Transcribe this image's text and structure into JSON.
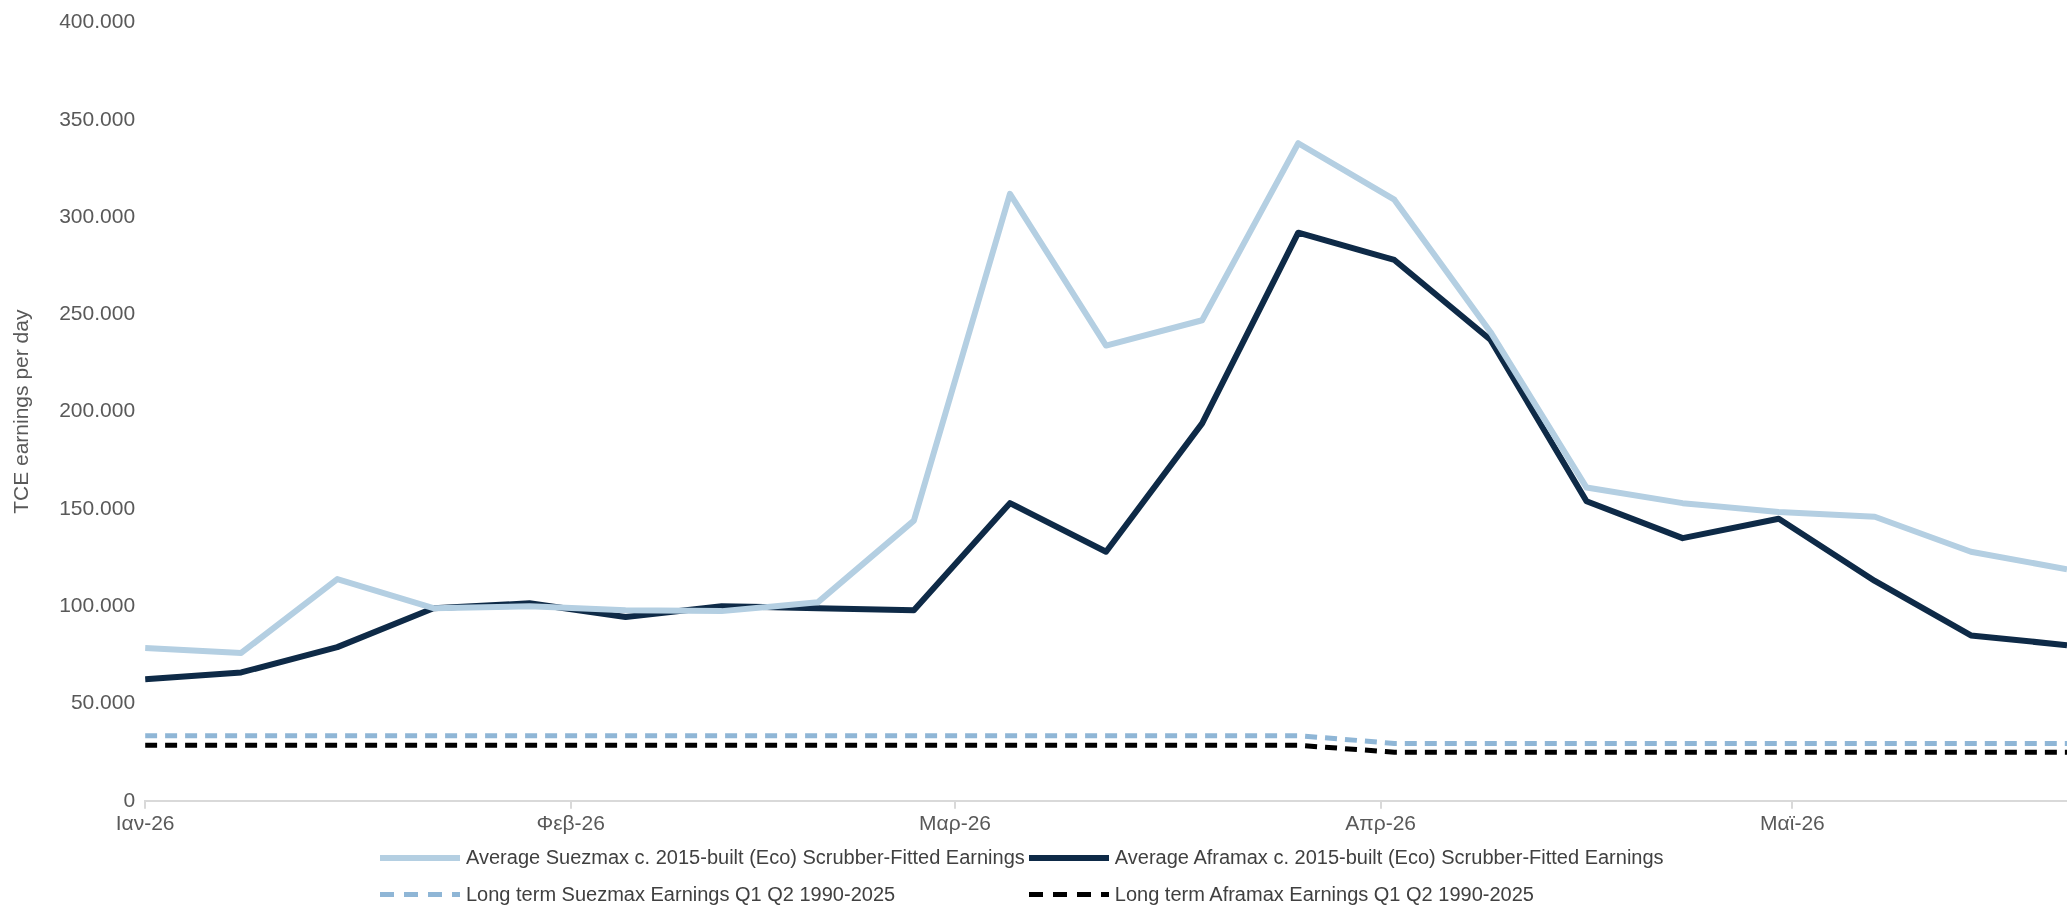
{
  "chart_data": {
    "type": "line",
    "ylabel": "TCE earnings per day",
    "x": [
      "2026-01-01",
      "2026-01-08",
      "2026-01-15",
      "2026-01-22",
      "2026-01-29",
      "2026-02-05",
      "2026-02-12",
      "2026-02-19",
      "2026-02-26",
      "2026-03-05",
      "2026-03-12",
      "2026-03-19",
      "2026-03-26",
      "2026-04-02",
      "2026-04-09",
      "2026-04-16",
      "2026-04-23",
      "2026-04-30",
      "2026-05-07",
      "2026-05-14",
      "2026-05-21"
    ],
    "series": [
      {
        "name": "Average Suezmax c. 2015-built (Eco) Scrubber-Fitted Earnings",
        "color": "#b4cfe2",
        "line_style": "solid",
        "values": [
          78500,
          76000,
          114000,
          99000,
          100000,
          98000,
          97500,
          102000,
          144000,
          312000,
          234000,
          247000,
          338000,
          309000,
          241000,
          161000,
          153000,
          148500,
          146000,
          128000,
          119000
        ]
      },
      {
        "name": "Average Aframax c. 2015-built (Eco) Scrubber-Fitted Earnings",
        "color": "#0e2a47",
        "line_style": "solid",
        "values": [
          62500,
          66000,
          79000,
          99000,
          101500,
          94500,
          100000,
          99000,
          98000,
          153000,
          128000,
          194000,
          292000,
          278000,
          237000,
          154000,
          135000,
          145000,
          113000,
          85000,
          80000
        ]
      },
      {
        "name": "Long term Suezmax Earnings Q1 Q2 1990-2025",
        "color": "#8fb6d6",
        "line_style": "dashed",
        "values": [
          33500,
          33500,
          33500,
          33500,
          33500,
          33500,
          33500,
          33500,
          33500,
          33500,
          33500,
          33500,
          33500,
          29500,
          29500,
          29500,
          29500,
          29500,
          29500,
          29500,
          29500
        ]
      },
      {
        "name": "Long term Aframax Earnings Q1 Q2 1990-2025",
        "color": "#000000",
        "line_style": "dashed",
        "values": [
          28500,
          28500,
          28500,
          28500,
          28500,
          28500,
          28500,
          28500,
          28500,
          28500,
          28500,
          28500,
          28500,
          25000,
          25000,
          25000,
          25000,
          25000,
          25000,
          25000,
          25000
        ]
      }
    ],
    "xlim": [
      "2026-01-01",
      "2026-05-21"
    ],
    "xticks": [
      {
        "value": "2026-01-01",
        "label": "Ιαν-26"
      },
      {
        "value": "2026-02-01",
        "label": "Φεβ-26"
      },
      {
        "value": "2026-03-01",
        "label": "Μαρ-26"
      },
      {
        "value": "2026-04-01",
        "label": "Απρ-26"
      },
      {
        "value": "2026-05-01",
        "label": "Μαϊ-26"
      }
    ],
    "ylim": [
      0,
      400000
    ],
    "yticks": [
      0,
      {
        "value": 50000,
        "label": "50.000"
      },
      {
        "value": 100000,
        "label": "100.000"
      },
      {
        "value": 150000,
        "label": "150.000"
      },
      {
        "value": 200000,
        "label": "200.000"
      },
      {
        "value": 250000,
        "label": "250.000"
      },
      {
        "value": 300000,
        "label": "300.000"
      },
      {
        "value": 350000,
        "label": "350.000"
      },
      {
        "value": 400000,
        "label": "400.000"
      }
    ],
    "grid": false,
    "legend": "bottom",
    "marker": "none"
  }
}
